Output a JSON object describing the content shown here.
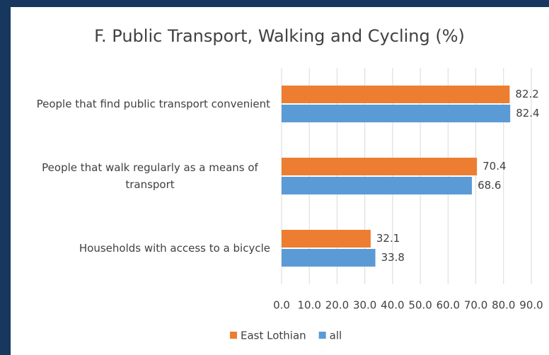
{
  "chart_data": {
    "type": "bar",
    "orientation": "horizontal",
    "title": "F. Public Transport, Walking and Cycling (%)",
    "categories": [
      "People that find public transport convenient",
      "People that walk regularly as a means of transport",
      "Households with access to a bicycle"
    ],
    "series": [
      {
        "name": "East Lothian",
        "color": "#ed7d31",
        "values": [
          82.2,
          70.4,
          32.1
        ]
      },
      {
        "name": "all",
        "color": "#5b9bd5",
        "values": [
          82.4,
          68.6,
          33.8
        ]
      }
    ],
    "xlim": [
      0,
      90
    ],
    "xticks": [
      {
        "value": 0,
        "label": "0.0"
      },
      {
        "value": 10,
        "label": "10.0"
      },
      {
        "value": 20,
        "label": "20.0"
      },
      {
        "value": 30,
        "label": "30.0"
      },
      {
        "value": 40,
        "label": "40.0"
      },
      {
        "value": 50,
        "label": "50.0"
      },
      {
        "value": 60,
        "label": "60.0"
      },
      {
        "value": 70,
        "label": "70.0"
      },
      {
        "value": 80,
        "label": "80.0"
      },
      {
        "value": 90,
        "label": "90.0"
      }
    ],
    "grid": true,
    "legend": "bottom"
  }
}
